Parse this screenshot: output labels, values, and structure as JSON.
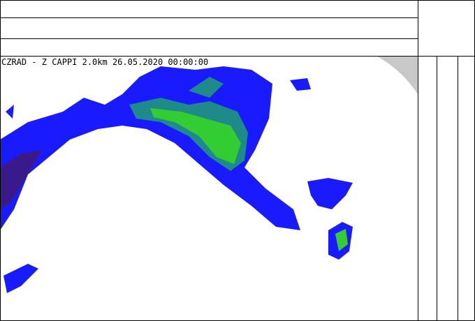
{
  "map": {
    "caption": "CZRAD - Z CAPPI 2.0km 26.05.2020 00:00:00"
  }
}
